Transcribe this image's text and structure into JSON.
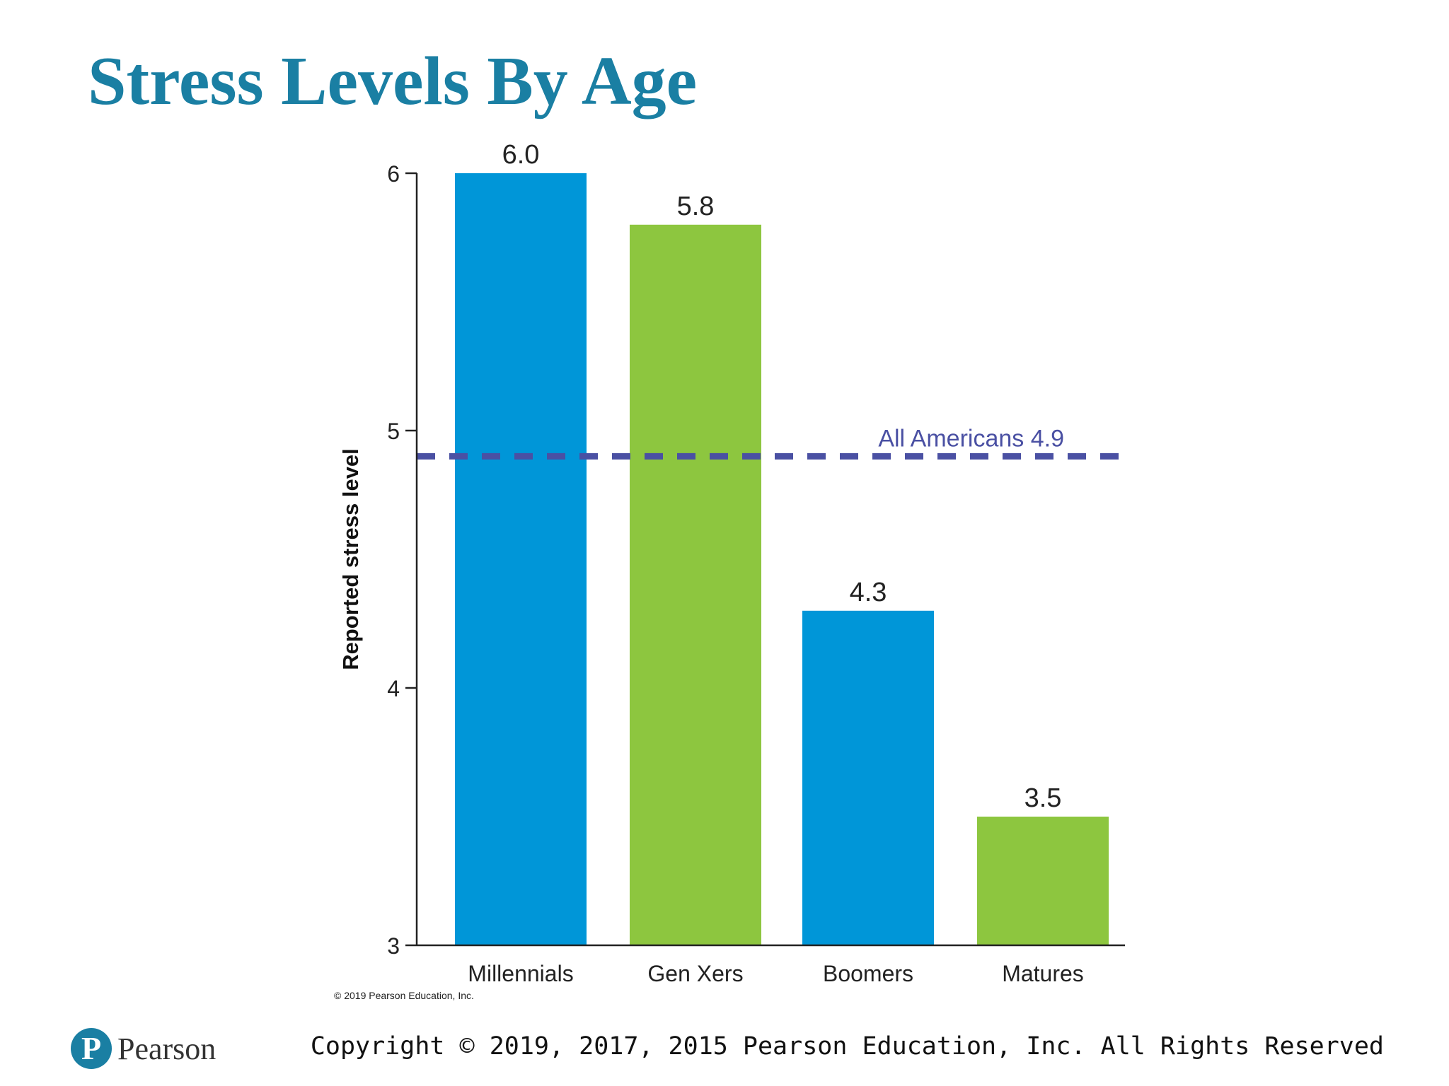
{
  "slide": {
    "title": "Stress Levels By Age",
    "chart_credit": "© 2019 Pearson Education, Inc.",
    "copyright": "Copyright © 2019, 2017, 2015 Pearson Education, Inc. All Rights Reserved",
    "logo_text": "Pearson",
    "logo_mark": "P"
  },
  "colors": {
    "title": "#1a7fa3",
    "blue": "#0096d8",
    "green": "#8dc63f",
    "reference_line": "#4a50a3",
    "axis": "#222222"
  },
  "chart_data": {
    "type": "bar",
    "categories": [
      "Millennials",
      "Gen Xers",
      "Boomers",
      "Matures"
    ],
    "values": [
      6.0,
      5.8,
      4.3,
      3.5
    ],
    "value_labels": [
      "6.0",
      "5.8",
      "4.3",
      "3.5"
    ],
    "bar_colors": [
      "#0096d8",
      "#8dc63f",
      "#0096d8",
      "#8dc63f"
    ],
    "ylabel": "Reported stress level",
    "xlabel": "",
    "ylim": [
      3,
      6
    ],
    "yticks": [
      3,
      4,
      5,
      6
    ],
    "grid": false,
    "reference_line": {
      "value": 4.9,
      "label": "All Americans 4.9",
      "style": "dashed"
    }
  }
}
